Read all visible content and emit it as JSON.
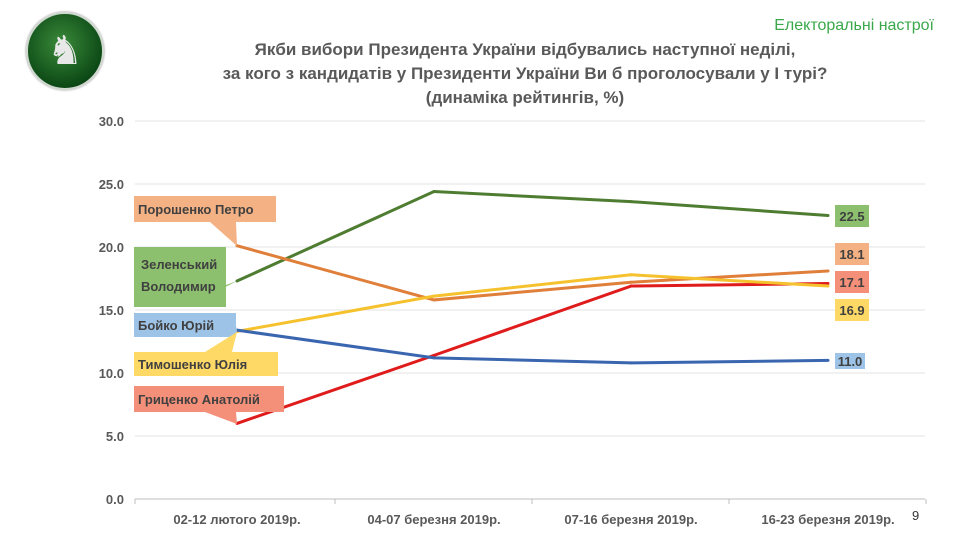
{
  "header": {
    "brand": "Електоральні настрої",
    "title_lines": [
      "Якби вибори Президента України відбувались наступної неділі,",
      "за кого з кандидатів у Президенти України Ви б проголосували у І турі?",
      "(динаміка рейтингів, %)"
    ],
    "page_number": "9",
    "logo_icon": "chess-knight-icon"
  },
  "chart_data": {
    "type": "line",
    "title": "Якби вибори Президента України відбувались наступної неділі, за кого з кандидатів у Президенти України Ви б проголосували у І турі? (динаміка рейтингів, %)",
    "categories": [
      "02-12 лютого 2019р.",
      "04-07 березня 2019р.",
      "07-16 березня 2019р.",
      "16-23 березня 2019р."
    ],
    "ylim": [
      0,
      30
    ],
    "yticks": [
      "0.0",
      "5.0",
      "10.0",
      "15.0",
      "20.0",
      "25.0",
      "30.0"
    ],
    "grid": true,
    "series": [
      {
        "name": "Зеленський Володимир",
        "color": "#4e7d31",
        "label_color": "#8cc06e",
        "values": [
          17.3,
          24.4,
          23.6,
          22.5
        ],
        "end_label": "22.5"
      },
      {
        "name": "Порошенко Петро",
        "color": "#e07f3a",
        "label_color": "#f4b183",
        "values": [
          20.1,
          15.8,
          17.2,
          18.1
        ],
        "end_label": "18.1"
      },
      {
        "name": "Гриценко Анатолій",
        "color": "#e01b1b",
        "label_color": "#f4907a",
        "values": [
          6.0,
          11.4,
          16.9,
          17.1
        ],
        "end_label": "17.1"
      },
      {
        "name": "Тимошенко Юлія",
        "color": "#f5c22e",
        "label_color": "#ffd966",
        "values": [
          13.3,
          16.1,
          17.8,
          16.9
        ],
        "end_label": "16.9"
      },
      {
        "name": "Бойко Юрій",
        "color": "#3a66b0",
        "label_color": "#9dc3e6",
        "values": [
          13.4,
          11.2,
          10.8,
          11.0
        ],
        "end_label": "11.0"
      }
    ]
  }
}
